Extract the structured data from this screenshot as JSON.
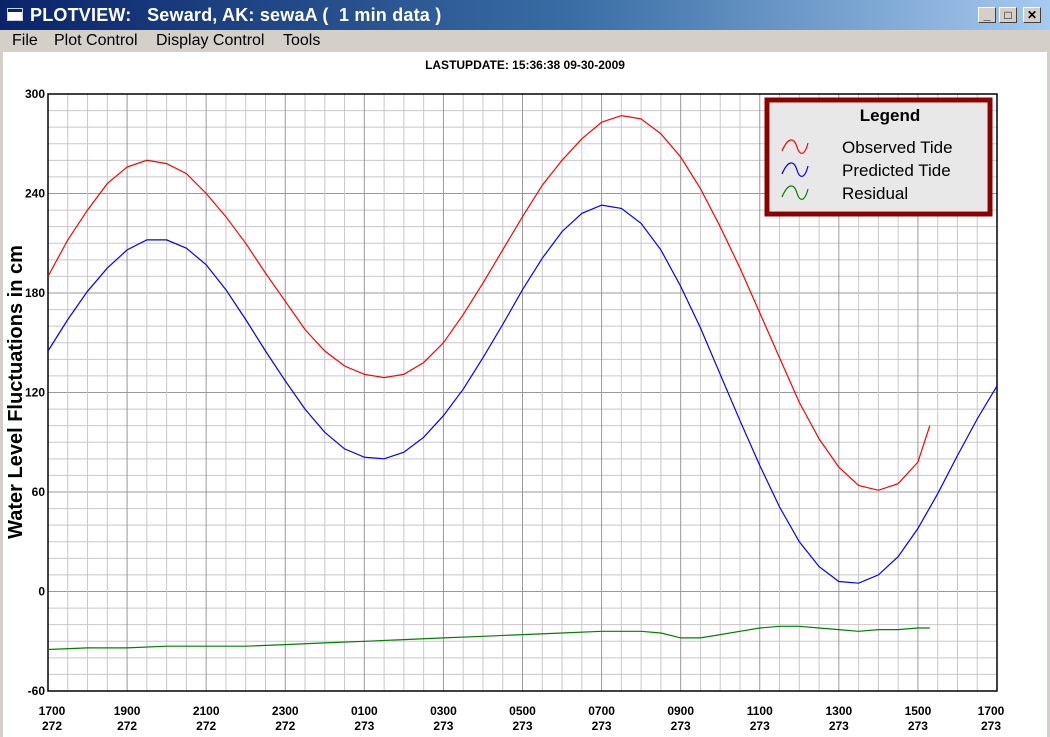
{
  "window": {
    "title": "PLOTVIEW:   Seward, AK: sewaA (  1 min data )",
    "minimize_label": "_",
    "maximize_label": "□",
    "close_label": "✕"
  },
  "menu": {
    "items": [
      {
        "label": "File"
      },
      {
        "label": "Plot Control"
      },
      {
        "label": "Display Control"
      },
      {
        "label": "Tools"
      }
    ]
  },
  "chart_data": {
    "type": "line",
    "title": "LASTUPDATE: 15:36:38  09-30-2009",
    "ylabel": "Water Level Fluctuations in cm",
    "xlabel": "",
    "ylim": [
      -60,
      300
    ],
    "yticks": [
      -60,
      0,
      60,
      120,
      180,
      240,
      300
    ],
    "x_unit": "hours from 1700 day 272",
    "xlim": [
      0,
      24
    ],
    "xticks": [
      {
        "x": 0,
        "time": "1700",
        "day": "272"
      },
      {
        "x": 2,
        "time": "1900",
        "day": "272"
      },
      {
        "x": 4,
        "time": "2100",
        "day": "272"
      },
      {
        "x": 6,
        "time": "2300",
        "day": "272"
      },
      {
        "x": 8,
        "time": "0100",
        "day": "273"
      },
      {
        "x": 10,
        "time": "0300",
        "day": "273"
      },
      {
        "x": 12,
        "time": "0500",
        "day": "273"
      },
      {
        "x": 14,
        "time": "0700",
        "day": "273"
      },
      {
        "x": 16,
        "time": "0900",
        "day": "273"
      },
      {
        "x": 18,
        "time": "1100",
        "day": "273"
      },
      {
        "x": 20,
        "time": "1300",
        "day": "273"
      },
      {
        "x": 22,
        "time": "1500",
        "day": "273"
      },
      {
        "x": 24,
        "time": "1700",
        "day": "273"
      }
    ],
    "grid": true,
    "legend": {
      "title": "Legend",
      "placement": "top-right"
    },
    "series": [
      {
        "name": "Observed Tide",
        "color": "#ff0000",
        "x": [
          0,
          0.5,
          1,
          1.5,
          2,
          2.5,
          3,
          3.5,
          4,
          4.5,
          5,
          5.5,
          6,
          6.5,
          7,
          7.5,
          8,
          8.5,
          9,
          9.5,
          10,
          10.5,
          11,
          11.5,
          12,
          12.5,
          13,
          13.5,
          14,
          14.5,
          15,
          15.5,
          16,
          16.5,
          17,
          17.5,
          18,
          18.5,
          19,
          19.5,
          20,
          20.5,
          21,
          21.5,
          22,
          22.3
        ],
        "y": [
          190,
          212,
          230,
          246,
          256,
          260,
          258,
          252,
          240,
          226,
          210,
          192,
          175,
          158,
          145,
          136,
          131,
          129,
          131,
          138,
          150,
          167,
          186,
          206,
          226,
          245,
          260,
          273,
          283,
          287,
          285,
          276,
          262,
          243,
          220,
          195,
          168,
          141,
          114,
          92,
          75,
          64,
          61,
          65,
          78,
          100
        ]
      },
      {
        "name": "Predicted Tide",
        "color": "#0000ff",
        "x": [
          0,
          0.5,
          1,
          1.5,
          2,
          2.5,
          3,
          3.5,
          4,
          4.5,
          5,
          5.5,
          6,
          6.5,
          7,
          7.5,
          8,
          8.5,
          9,
          9.5,
          10,
          10.5,
          11,
          11.5,
          12,
          12.5,
          13,
          13.5,
          14,
          14.5,
          15,
          15.5,
          16,
          16.5,
          17,
          17.5,
          18,
          18.5,
          19,
          19.5,
          20,
          20.5,
          21,
          21.5,
          22,
          22.5,
          23,
          23.5,
          24
        ],
        "y": [
          145,
          164,
          181,
          195,
          206,
          212,
          212,
          207,
          197,
          182,
          164,
          145,
          127,
          110,
          96,
          86,
          81,
          80,
          84,
          93,
          106,
          122,
          141,
          161,
          182,
          201,
          217,
          228,
          233,
          231,
          222,
          206,
          184,
          159,
          131,
          103,
          76,
          51,
          30,
          15,
          6,
          5,
          10,
          21,
          38,
          59,
          82,
          104,
          124
        ]
      },
      {
        "name": "Residual",
        "color": "#008000",
        "x": [
          0,
          1,
          2,
          3,
          4,
          5,
          6,
          7,
          8,
          9,
          10,
          11,
          12,
          13,
          14,
          14.5,
          15,
          15.5,
          16,
          16.5,
          17,
          17.5,
          18,
          18.5,
          19,
          19.5,
          20,
          20.5,
          21,
          21.5,
          22,
          22.3
        ],
        "y": [
          -35,
          -34,
          -34,
          -33,
          -33,
          -33,
          -32,
          -31,
          -30,
          -29,
          -28,
          -27,
          -26,
          -25,
          -24,
          -24,
          -24,
          -25,
          -28,
          -28,
          -26,
          -24,
          -22,
          -21,
          -21,
          -22,
          -23,
          -24,
          -23,
          -23,
          -22,
          -22
        ]
      }
    ]
  }
}
